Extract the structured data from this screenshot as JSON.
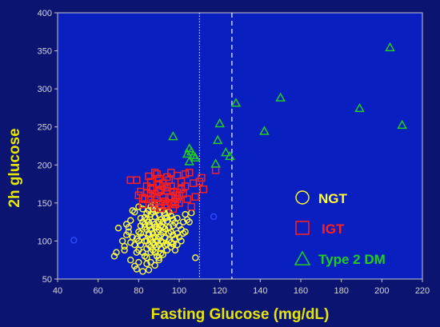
{
  "chart_data": {
    "type": "scatter",
    "title": "",
    "xlabel": "Fasting Glucose (mg/dL)",
    "ylabel": "2h glucose",
    "xlim": [
      40,
      220
    ],
    "ylim": [
      50,
      400
    ],
    "x_ticks": [
      40,
      60,
      80,
      100,
      120,
      140,
      160,
      180,
      200,
      220
    ],
    "y_ticks": [
      50,
      100,
      150,
      200,
      250,
      300,
      350,
      400
    ],
    "grid": false,
    "legend_position": "right",
    "reference_lines": [
      {
        "x": 110,
        "style": "dotted"
      },
      {
        "x": 126,
        "style": "dashed"
      }
    ],
    "colors": {
      "background": "#0b1470",
      "plot_background": "#0a1fbf",
      "axis_text": "#e6e600",
      "NGT": "#ffff33",
      "IGT": "#ff2020",
      "Type 2 DM": "#22cc22",
      "outlier": "#2f4bff"
    },
    "series": [
      {
        "name": "NGT",
        "marker": "circle",
        "color": "#ffff33",
        "points": [
          [
            68,
            80
          ],
          [
            69,
            85
          ],
          [
            70,
            117
          ],
          [
            72,
            100
          ],
          [
            73,
            93
          ],
          [
            74,
            108
          ],
          [
            75,
            118
          ],
          [
            76,
            127
          ],
          [
            77,
            140
          ],
          [
            78,
            138
          ],
          [
            76,
            75
          ],
          [
            78,
            67
          ],
          [
            79,
            63
          ],
          [
            80,
            72
          ],
          [
            80,
            88
          ],
          [
            81,
            95
          ],
          [
            82,
            60
          ],
          [
            83,
            80
          ],
          [
            84,
            70
          ],
          [
            85,
            62
          ],
          [
            79,
            103
          ],
          [
            80,
            112
          ],
          [
            81,
            120
          ],
          [
            82,
            125
          ],
          [
            83,
            131
          ],
          [
            84,
            136
          ],
          [
            85,
            140
          ],
          [
            86,
            145
          ],
          [
            87,
            138
          ],
          [
            88,
            132
          ],
          [
            80,
            145
          ],
          [
            82,
            142
          ],
          [
            84,
            128
          ],
          [
            85,
            120
          ],
          [
            86,
            115
          ],
          [
            87,
            110
          ],
          [
            88,
            105
          ],
          [
            89,
            100
          ],
          [
            90,
            95
          ],
          [
            91,
            90
          ],
          [
            84,
            100
          ],
          [
            85,
            95
          ],
          [
            86,
            92
          ],
          [
            87,
            88
          ],
          [
            88,
            85
          ],
          [
            89,
            80
          ],
          [
            90,
            78
          ],
          [
            91,
            84
          ],
          [
            92,
            98
          ],
          [
            93,
            104
          ],
          [
            81,
            110
          ],
          [
            82,
            105
          ],
          [
            83,
            100
          ],
          [
            84,
            115
          ],
          [
            85,
            108
          ],
          [
            86,
            102
          ],
          [
            87,
            125
          ],
          [
            88,
            122
          ],
          [
            89,
            118
          ],
          [
            90,
            115
          ],
          [
            91,
            120
          ],
          [
            92,
            125
          ],
          [
            93,
            130
          ],
          [
            94,
            126
          ],
          [
            95,
            118
          ],
          [
            96,
            112
          ],
          [
            97,
            108
          ],
          [
            98,
            103
          ],
          [
            99,
            95
          ],
          [
            100,
            120
          ],
          [
            86,
            135
          ],
          [
            87,
            142
          ],
          [
            88,
            148
          ],
          [
            89,
            140
          ],
          [
            90,
            135
          ],
          [
            91,
            128
          ],
          [
            92,
            140
          ],
          [
            93,
            136
          ],
          [
            94,
            131
          ],
          [
            95,
            138
          ],
          [
            96,
            133
          ],
          [
            97,
            128
          ],
          [
            98,
            124
          ],
          [
            99,
            110
          ],
          [
            101,
            115
          ],
          [
            102,
            125
          ],
          [
            103,
            112
          ],
          [
            104,
            128
          ],
          [
            105,
            125
          ],
          [
            106,
            137
          ],
          [
            84,
            90
          ],
          [
            86,
            85
          ],
          [
            88,
            95
          ],
          [
            90,
            105
          ],
          [
            92,
            112
          ],
          [
            94,
            96
          ],
          [
            96,
            92
          ],
          [
            98,
            88
          ],
          [
            83,
            118
          ],
          [
            85,
            125
          ],
          [
            87,
            98
          ],
          [
            89,
            92
          ],
          [
            91,
            100
          ],
          [
            93,
            116
          ],
          [
            95,
            101
          ],
          [
            97,
            96
          ],
          [
            80,
            100
          ],
          [
            82,
            85
          ],
          [
            84,
            78
          ],
          [
            86,
            72
          ],
          [
            88,
            68
          ],
          [
            90,
            75
          ],
          [
            92,
            82
          ],
          [
            94,
            88
          ],
          [
            96,
            98
          ],
          [
            81,
            130
          ],
          [
            83,
            122
          ],
          [
            85,
            110
          ],
          [
            87,
            105
          ],
          [
            89,
            112
          ],
          [
            91,
            108
          ],
          [
            93,
            94
          ],
          [
            95,
            110
          ],
          [
            97,
            120
          ],
          [
            99,
            130
          ],
          [
            100,
            105
          ],
          [
            102,
            110
          ],
          [
            103,
            135
          ],
          [
            101,
            100
          ],
          [
            108,
            78
          ],
          [
            75,
            112
          ],
          [
            77,
            105
          ],
          [
            78,
            95
          ],
          [
            79,
            85
          ],
          [
            76,
            98
          ],
          [
            74,
            122
          ],
          [
            73,
            88
          ],
          [
            88,
            118
          ],
          [
            90,
            125
          ],
          [
            92,
            118
          ]
        ]
      },
      {
        "name": "IGT",
        "marker": "square",
        "color": "#ff2020",
        "points": [
          [
            76,
            180
          ],
          [
            79,
            180
          ],
          [
            81,
            165
          ],
          [
            82,
            148
          ],
          [
            83,
            155
          ],
          [
            84,
            172
          ],
          [
            85,
            185
          ],
          [
            86,
            178
          ],
          [
            87,
            170
          ],
          [
            88,
            162
          ],
          [
            89,
            188
          ],
          [
            90,
            175
          ],
          [
            91,
            168
          ],
          [
            92,
            158
          ],
          [
            93,
            152
          ],
          [
            94,
            148
          ],
          [
            95,
            180
          ],
          [
            96,
            172
          ],
          [
            97,
            165
          ],
          [
            98,
            160
          ],
          [
            99,
            155
          ],
          [
            100,
            150
          ],
          [
            101,
            178
          ],
          [
            102,
            162
          ],
          [
            103,
            188
          ],
          [
            105,
            190
          ],
          [
            106,
            145
          ],
          [
            107,
            176
          ],
          [
            108,
            158
          ],
          [
            110,
            178
          ],
          [
            111,
            183
          ],
          [
            112,
            168
          ],
          [
            118,
            193
          ],
          [
            85,
            155
          ],
          [
            86,
            162
          ],
          [
            87,
            150
          ],
          [
            88,
            145
          ],
          [
            89,
            156
          ],
          [
            90,
            148
          ],
          [
            91,
            143
          ],
          [
            92,
            152
          ],
          [
            93,
            146
          ],
          [
            94,
            170
          ],
          [
            95,
            158
          ],
          [
            96,
            150
          ],
          [
            97,
            142
          ],
          [
            98,
            148
          ],
          [
            99,
            164
          ],
          [
            100,
            160
          ],
          [
            104,
            155
          ],
          [
            80,
            160
          ],
          [
            82,
            157
          ],
          [
            84,
            163
          ],
          [
            86,
            168
          ],
          [
            88,
            158
          ],
          [
            90,
            165
          ],
          [
            92,
            172
          ],
          [
            94,
            166
          ],
          [
            96,
            158
          ],
          [
            98,
            152
          ],
          [
            88,
            190
          ],
          [
            90,
            182
          ],
          [
            92,
            176
          ],
          [
            94,
            184
          ],
          [
            96,
            190
          ],
          [
            99,
            186
          ],
          [
            101,
            168
          ],
          [
            103,
            172
          ]
        ]
      },
      {
        "name": "Type 2 DM",
        "marker": "triangle",
        "color": "#22cc22",
        "points": [
          [
            97,
            238
          ],
          [
            104,
            215
          ],
          [
            105,
            222
          ],
          [
            106,
            218
          ],
          [
            107,
            213
          ],
          [
            108,
            210
          ],
          [
            105,
            205
          ],
          [
            118,
            202
          ],
          [
            119,
            233
          ],
          [
            120,
            255
          ],
          [
            123,
            217
          ],
          [
            125,
            212
          ],
          [
            128,
            282
          ],
          [
            142,
            245
          ],
          [
            150,
            289
          ],
          [
            189,
            275
          ],
          [
            204,
            355
          ],
          [
            210,
            253
          ]
        ]
      },
      {
        "marker": "circle",
        "color": "#2f4bff",
        "points": [
          [
            48,
            101
          ],
          [
            117,
            132
          ]
        ]
      }
    ]
  },
  "legend": [
    {
      "label": "NGT",
      "marker": "circle",
      "color": "#ffff33"
    },
    {
      "label": "IGT",
      "marker": "square",
      "color": "#ff2020"
    },
    {
      "label": "Type 2 DM",
      "marker": "triangle",
      "color": "#22cc22"
    }
  ]
}
